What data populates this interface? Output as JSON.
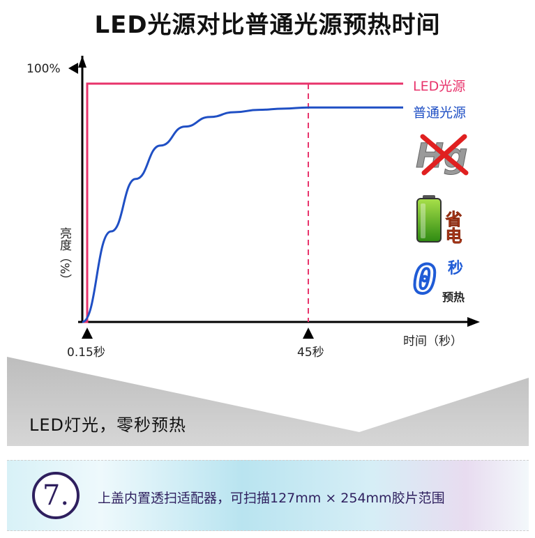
{
  "title": "LED光源对比普通光源预热时间",
  "chart_data": {
    "type": "line",
    "xlabel": "时间（秒）",
    "ylabel": "亮度（%）",
    "y_top_label": "100%",
    "x_markers": [
      "0.15秒",
      "45秒"
    ],
    "series": [
      {
        "name": "LED光源",
        "color": "#e8336b",
        "x": [
          0,
          0.15,
          0.15,
          60
        ],
        "y": [
          0,
          0,
          100,
          100
        ]
      },
      {
        "name": "普通光源",
        "color": "#1f4fc4",
        "x": [
          0,
          5,
          10,
          15,
          20,
          25,
          30,
          35,
          40,
          45,
          60
        ],
        "y": [
          0,
          38,
          60,
          74,
          82,
          86,
          88,
          89,
          89.5,
          90,
          90
        ]
      }
    ]
  },
  "icons": [
    {
      "name": "hg-crossed-icon",
      "label": "Hg"
    },
    {
      "name": "battery-icon",
      "label": "省电",
      "color": "#e8532a"
    },
    {
      "name": "zero-seconds-icon",
      "digit": "0",
      "label": "秒",
      "sublabel": "预热",
      "color": "#1f5bd6"
    }
  ],
  "slogan": "LED灯光，零秒预热",
  "feature": {
    "number": "7.",
    "text": "上盖内置透扫适配器，可扫描127mm × 254mm胶片范围"
  }
}
